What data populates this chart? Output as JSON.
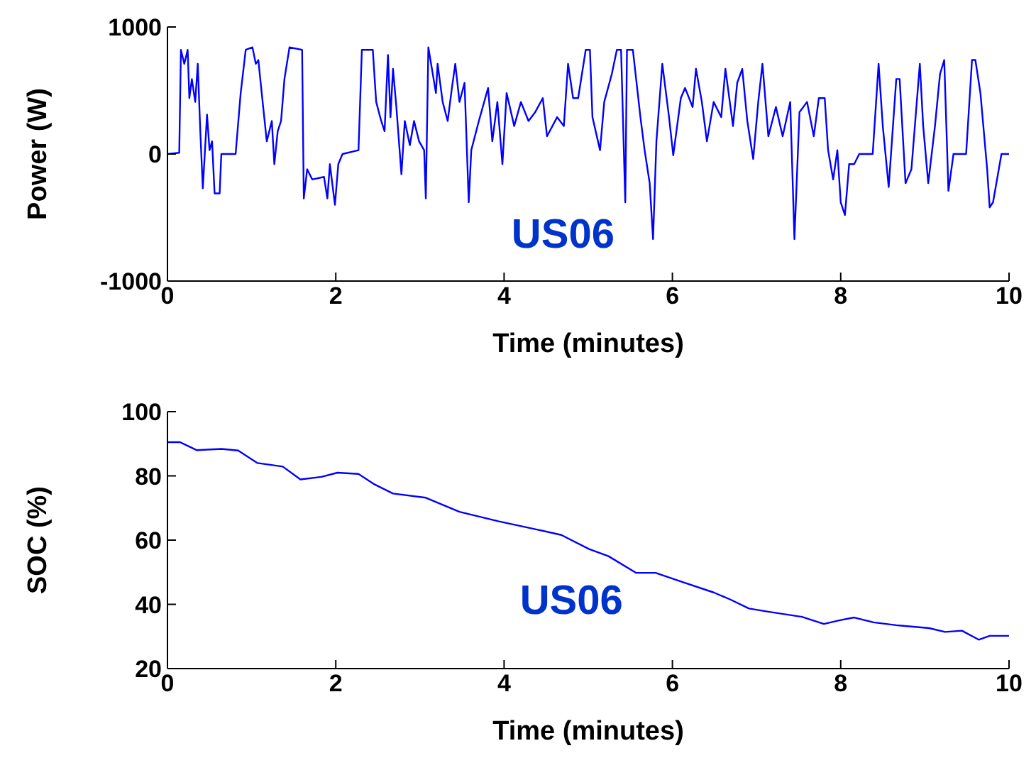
{
  "chart_data": [
    {
      "type": "line",
      "xlabel": "Time (minutes)",
      "ylabel": "Power (W)",
      "annotations": [
        "US06"
      ],
      "marker": "none",
      "xlim": [
        0,
        10
      ],
      "xticks": [
        0,
        2,
        4,
        6,
        8,
        10
      ],
      "ylim": [
        -1000,
        1000
      ],
      "yticks": [
        -1000,
        0,
        1000
      ],
      "x": [
        0,
        0.14,
        0.16,
        0.2,
        0.24,
        0.26,
        0.29,
        0.33,
        0.36,
        0.39,
        0.42,
        0.47,
        0.5,
        0.53,
        0.56,
        0.62,
        0.64,
        0.81,
        0.87,
        0.93,
        1.01,
        1.05,
        1.08,
        1.12,
        1.18,
        1.24,
        1.27,
        1.31,
        1.35,
        1.39,
        1.45,
        1.6,
        1.62,
        1.66,
        1.72,
        1.86,
        1.9,
        1.93,
        1.99,
        2.03,
        2.08,
        2.27,
        2.31,
        2.44,
        2.48,
        2.54,
        2.58,
        2.62,
        2.65,
        2.68,
        2.72,
        2.78,
        2.82,
        2.88,
        2.93,
        2.99,
        3.05,
        3.07,
        3.1,
        3.19,
        3.21,
        3.27,
        3.33,
        3.38,
        3.42,
        3.47,
        3.53,
        3.58,
        3.61,
        3.7,
        3.81,
        3.86,
        3.92,
        3.98,
        4.03,
        4.12,
        4.2,
        4.29,
        4.37,
        4.46,
        4.51,
        4.63,
        4.71,
        4.76,
        4.82,
        4.88,
        4.97,
        5.02,
        5.05,
        5.14,
        5.19,
        5.28,
        5.34,
        5.39,
        5.44,
        5.46,
        5.53,
        5.62,
        5.67,
        5.73,
        5.77,
        5.81,
        5.88,
        5.96,
        6.01,
        6.1,
        6.15,
        6.24,
        6.28,
        6.35,
        6.41,
        6.49,
        6.58,
        6.63,
        6.72,
        6.77,
        6.83,
        6.89,
        6.96,
        7.02,
        7.07,
        7.14,
        7.23,
        7.31,
        7.4,
        7.45,
        7.51,
        7.6,
        7.68,
        7.74,
        7.81,
        7.85,
        7.91,
        7.96,
        8.0,
        8.05,
        8.1,
        8.16,
        8.22,
        8.38,
        8.45,
        8.5,
        8.57,
        8.66,
        8.7,
        8.77,
        8.84,
        8.94,
        8.98,
        9.04,
        9.12,
        9.18,
        9.23,
        9.28,
        9.34,
        9.49,
        9.56,
        9.6,
        9.66,
        9.74,
        9.77,
        9.81,
        9.91,
        10
      ],
      "series": [
        {
          "color": "#0000ff",
          "values": [
            0,
            10,
            820,
            710,
            820,
            440,
            590,
            410,
            710,
            180,
            -270,
            310,
            30,
            100,
            -310,
            -310,
            0,
            0,
            480,
            820,
            840,
            710,
            740,
            480,
            100,
            260,
            -80,
            180,
            260,
            590,
            840,
            820,
            -350,
            -120,
            -200,
            -180,
            -350,
            -80,
            -400,
            -80,
            0,
            30,
            820,
            820,
            410,
            260,
            180,
            780,
            290,
            670,
            370,
            -160,
            260,
            70,
            260,
            100,
            30,
            -350,
            840,
            480,
            710,
            410,
            260,
            520,
            710,
            410,
            560,
            -380,
            30,
            260,
            520,
            100,
            410,
            -80,
            480,
            220,
            410,
            260,
            330,
            440,
            140,
            290,
            220,
            710,
            440,
            440,
            820,
            820,
            290,
            30,
            410,
            630,
            820,
            820,
            -380,
            820,
            820,
            290,
            30,
            -230,
            -670,
            100,
            710,
            290,
            -10,
            440,
            520,
            370,
            670,
            410,
            100,
            410,
            290,
            670,
            220,
            560,
            670,
            260,
            -40,
            410,
            710,
            140,
            370,
            140,
            410,
            -670,
            330,
            410,
            140,
            440,
            440,
            30,
            -200,
            30,
            -380,
            -480,
            -80,
            -80,
            0,
            0,
            710,
            220,
            -260,
            590,
            590,
            -230,
            -120,
            710,
            220,
            -230,
            220,
            630,
            740,
            -290,
            0,
            0,
            740,
            740,
            480,
            -120,
            -420,
            -380,
            0,
            0
          ]
        }
      ]
    },
    {
      "type": "line",
      "xlabel": "Time (minutes)",
      "ylabel": "SOC (%)",
      "annotations": [
        "US06"
      ],
      "marker": "none",
      "xlim": [
        0,
        10
      ],
      "xticks": [
        0,
        2,
        4,
        6,
        8,
        10
      ],
      "ylim": [
        20,
        100
      ],
      "yticks": [
        20,
        40,
        60,
        80,
        100
      ],
      "x": [
        0,
        0.15,
        0.35,
        0.64,
        0.84,
        1.07,
        1.37,
        1.58,
        1.83,
        2.02,
        2.27,
        2.45,
        2.68,
        3.07,
        3.47,
        3.93,
        4.39,
        4.68,
        5.01,
        5.24,
        5.57,
        5.8,
        6.09,
        6.49,
        6.68,
        6.91,
        7.14,
        7.54,
        7.8,
        8.0,
        8.16,
        8.39,
        8.66,
        9.05,
        9.24,
        9.44,
        9.64,
        9.77,
        10
      ],
      "series": [
        {
          "color": "#0000ff",
          "values": [
            90.5,
            90.5,
            88,
            88.4,
            87.9,
            84,
            82.9,
            78.9,
            79.7,
            81,
            80.6,
            77.5,
            74.5,
            73.2,
            68.8,
            65.9,
            63.3,
            61.6,
            57.2,
            55,
            49.8,
            49.8,
            47.2,
            43.7,
            41.6,
            38.7,
            37.7,
            36.1,
            33.9,
            35.1,
            35.9,
            34.4,
            33.5,
            32.6,
            31.4,
            31.8,
            29,
            30.2,
            30.2
          ]
        }
      ]
    }
  ]
}
